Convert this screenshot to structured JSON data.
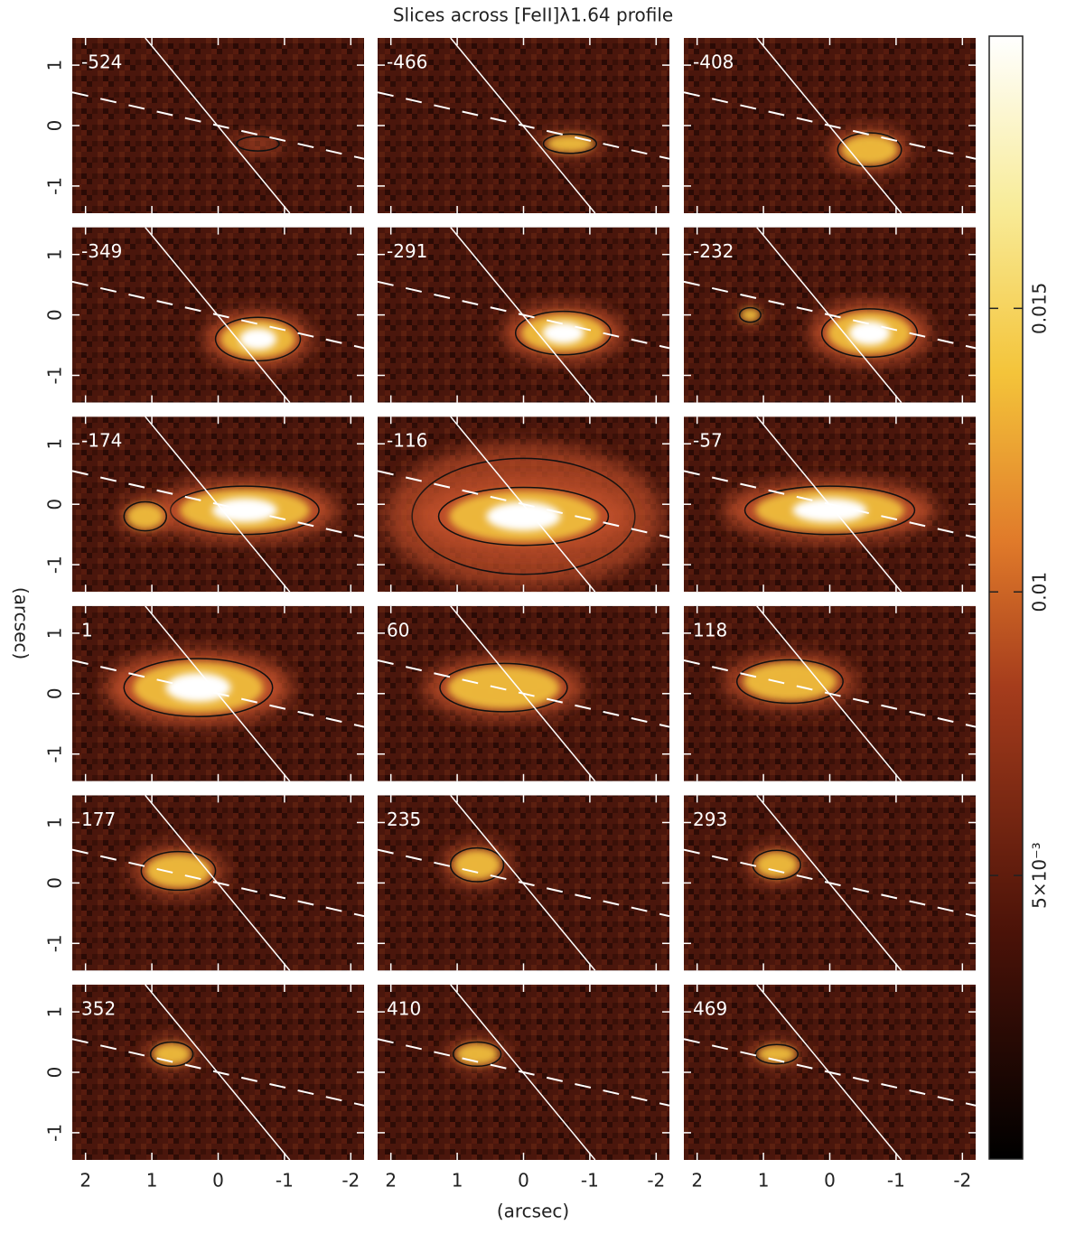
{
  "chart_data": {
    "type": "image-grid",
    "title": "Slices across [FeII]λ1.64 profile",
    "xlabel": "(arcsec)",
    "ylabel": "(arcsec)",
    "xlim": [
      2.2,
      -2.2
    ],
    "xticks": [
      2,
      1,
      0,
      -1,
      -2
    ],
    "ylim": [
      -1.45,
      1.45
    ],
    "yticks": [
      1,
      0,
      -1
    ],
    "panels": [
      {
        "label": -524
      },
      {
        "label": -466
      },
      {
        "label": -408
      },
      {
        "label": -349
      },
      {
        "label": -291
      },
      {
        "label": -232
      },
      {
        "label": -174
      },
      {
        "label": -116
      },
      {
        "label": -57
      },
      {
        "label": 1
      },
      {
        "label": 60
      },
      {
        "label": 118
      },
      {
        "label": 177
      },
      {
        "label": 235
      },
      {
        "label": 293
      },
      {
        "label": 352
      },
      {
        "label": 410
      },
      {
        "label": 469
      }
    ],
    "colorbar": {
      "clim": [
        0,
        0.0198
      ],
      "ticks": [
        {
          "value": 0.005,
          "label": "5×10⁻³"
        },
        0.01,
        0.015
      ]
    }
  }
}
